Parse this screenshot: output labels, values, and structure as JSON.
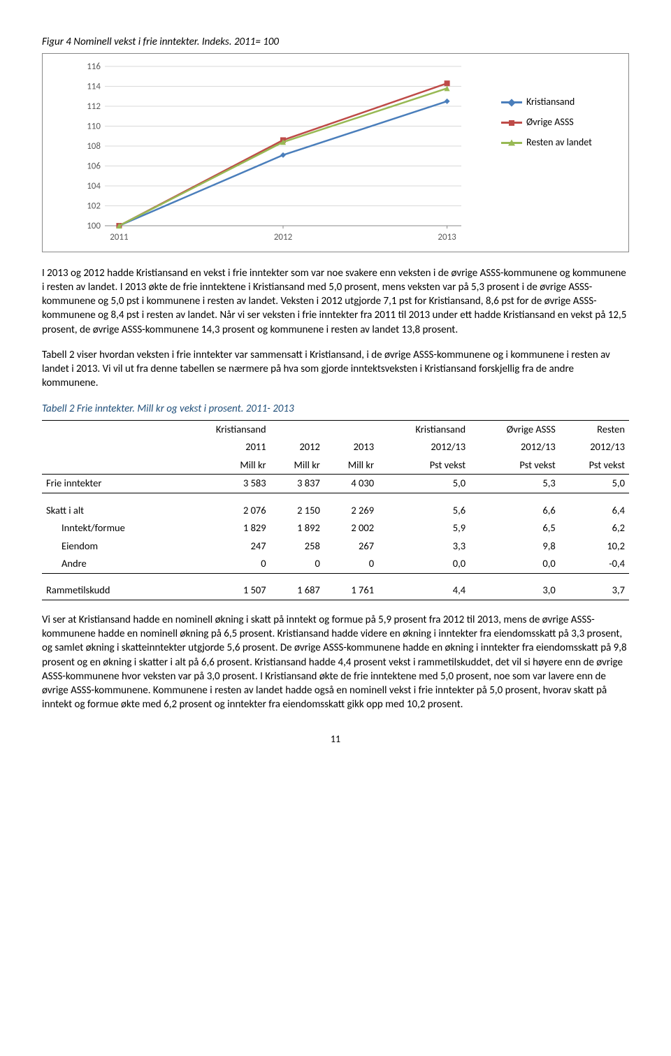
{
  "figure": {
    "title": "Figur 4 Nominell vekst i frie inntekter. Indeks. 2011= 100",
    "chart": {
      "type": "line",
      "x_categories": [
        "2011",
        "2012",
        "2013"
      ],
      "y_ticks": [
        100,
        102,
        104,
        106,
        108,
        110,
        112,
        114,
        116
      ],
      "ylim": [
        100,
        116
      ],
      "series": [
        {
          "name": "Kristiansand",
          "color": "#4a7ebb",
          "marker": "diamond",
          "values": [
            100,
            107.1,
            112.5
          ]
        },
        {
          "name": "Øvrige ASSS",
          "color": "#be4b48",
          "marker": "square",
          "values": [
            100,
            108.6,
            114.3
          ]
        },
        {
          "name": "Resten av landet",
          "color": "#98b954",
          "marker": "triangle",
          "values": [
            100,
            108.4,
            113.8
          ]
        }
      ],
      "grid_color": "#d9d9d9",
      "axis_color": "#888888",
      "background": "#ffffff",
      "line_width": 2.5,
      "marker_size": 8,
      "font_size_axis": 13
    }
  },
  "paragraphs": {
    "p1": "I 2013 og 2012 hadde Kristiansand en vekst i frie inntekter som var noe svakere enn veksten i de øvrige ASSS-kommunene og kommunene i resten av landet. I 2013 økte de frie inntektene i Kristiansand med 5,0 prosent, mens veksten var på 5,3 prosent i de øvrige ASSS-kommunene og 5,0 pst i kommunene i resten av landet. Veksten i 2012 utgjorde 7,1 pst for Kristiansand, 8,6 pst for de øvrige ASSS-kommunene og 8,4 pst i resten av landet. Når vi ser veksten i frie inntekter fra 2011 til 2013 under ett hadde Kristiansand en vekst på 12,5 prosent, de øvrige ASSS-kommunene 14,3 prosent og kommunene i resten av landet 13,8 prosent.",
    "p2": "Tabell 2 viser hvordan veksten i frie inntekter var sammensatt i Kristiansand, i de øvrige ASSS-kommunene og i kommunene i resten av landet i 2013. Vi vil ut fra denne tabellen se nærmere på hva som gjorde inntektsveksten i Kristiansand forskjellig fra de andre kommunene.",
    "p3": "Vi ser at Kristiansand hadde en nominell økning i skatt på inntekt og formue på 5,9 prosent fra 2012 til 2013, mens de øvrige ASSS-kommunene hadde en nominell økning på 6,5 prosent. Kristiansand hadde videre en økning i inntekter fra eiendomsskatt på 3,3 prosent, og samlet økning i skatteinntekter utgjorde 5,6 prosent. De øvrige ASSS-kommunene hadde en økning i inntekter fra eiendomsskatt på 9,8 prosent og en økning i skatter i alt på 6,6 prosent. Kristiansand hadde 4,4 prosent vekst i rammetilskuddet, det vil si høyere enn de øvrige ASSS-kommunene hvor veksten var på 3,0 prosent. I Kristiansand økte de frie inntektene med 5,0 prosent, noe som var lavere enn de øvrige ASSS-kommunene. Kommunene i resten av landet hadde også en nominell vekst i frie inntekter på 5,0 prosent, hvorav skatt på inntekt og formue økte med 6,2 prosent og inntekter fra eiendomsskatt gikk opp med 10,2 prosent."
  },
  "table": {
    "title": "Tabell 2 Frie inntekter. Mill kr og vekst i prosent. 2011- 2013",
    "header_top": [
      "",
      "Kristiansand",
      "",
      "",
      "Kristiansand",
      "Øvrige ASSS",
      "Resten"
    ],
    "header_years": [
      "",
      "2011",
      "2012",
      "2013",
      "2012/13",
      "2012/13",
      "2012/13"
    ],
    "header_units": [
      "",
      "Mill kr",
      "Mill kr",
      "Mill kr",
      "Pst vekst",
      "Pst vekst",
      "Pst vekst"
    ],
    "rows": [
      {
        "label": "Frie inntekter",
        "cells": [
          "3 583",
          "3 837",
          "4 030",
          "5,0",
          "5,3",
          "5,0"
        ],
        "section_end": true
      },
      {
        "label": "Skatt i alt",
        "cells": [
          "2 076",
          "2 150",
          "2 269",
          "5,6",
          "6,6",
          "6,4"
        ]
      },
      {
        "label": "Inntekt/formue",
        "cells": [
          "1 829",
          "1 892",
          "2 002",
          "5,9",
          "6,5",
          "6,2"
        ],
        "indent": true
      },
      {
        "label": "Eiendom",
        "cells": [
          "247",
          "258",
          "267",
          "3,3",
          "9,8",
          "10,2"
        ],
        "indent": true
      },
      {
        "label": "Andre",
        "cells": [
          "0",
          "0",
          "0",
          "0,0",
          "0,0",
          "-0,4"
        ],
        "indent": true,
        "section_end": true
      },
      {
        "label": "Rammetilskudd",
        "cells": [
          "1 507",
          "1 687",
          "1 761",
          "4,4",
          "3,0",
          "3,7"
        ],
        "section_end": true
      }
    ]
  },
  "page_number": "11"
}
